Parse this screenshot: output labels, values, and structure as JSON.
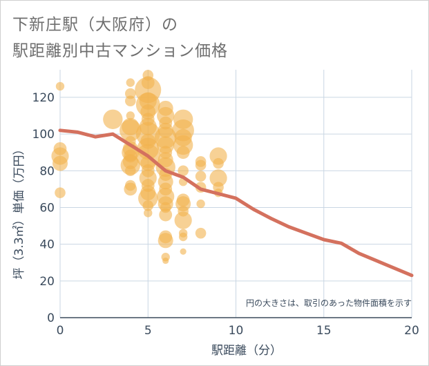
{
  "chart_data": {
    "type": "scatter",
    "title_line1": "下新庄駅（大阪府）の",
    "title_line2": "駅距離別中古マンション価格",
    "xlabel": "駅距離（分）",
    "ylabel": "坪（3.3㎡）単価（万円）",
    "note": "円の大きさは、取引のあった物件面積を示す",
    "xlim": [
      0,
      20
    ],
    "ylim": [
      0,
      135
    ],
    "x_ticks": [
      0,
      5,
      10,
      15,
      20
    ],
    "y_ticks": [
      0,
      20,
      40,
      60,
      80,
      100,
      120
    ],
    "grid": true,
    "colors": {
      "bubble": "#f2b24e",
      "trend": "#d4715e",
      "grid": "#c9d6e3",
      "axis": "#3a4a5c"
    },
    "bubbles": [
      {
        "x": 0,
        "y": 126,
        "s": 2
      },
      {
        "x": 0,
        "y": 92,
        "s": 4
      },
      {
        "x": 0,
        "y": 88,
        "s": 6
      },
      {
        "x": 0,
        "y": 84,
        "s": 5
      },
      {
        "x": 0,
        "y": 68,
        "s": 3
      },
      {
        "x": 3,
        "y": 108,
        "s": 7
      },
      {
        "x": 4,
        "y": 128,
        "s": 2
      },
      {
        "x": 4,
        "y": 122,
        "s": 3
      },
      {
        "x": 4,
        "y": 118,
        "s": 3
      },
      {
        "x": 4,
        "y": 110,
        "s": 2
      },
      {
        "x": 4,
        "y": 104,
        "s": 6
      },
      {
        "x": 4,
        "y": 102,
        "s": 8
      },
      {
        "x": 4,
        "y": 96,
        "s": 3
      },
      {
        "x": 4,
        "y": 92,
        "s": 5
      },
      {
        "x": 4,
        "y": 90,
        "s": 6
      },
      {
        "x": 4,
        "y": 88,
        "s": 4
      },
      {
        "x": 4,
        "y": 85,
        "s": 5
      },
      {
        "x": 4,
        "y": 83,
        "s": 7
      },
      {
        "x": 4,
        "y": 80,
        "s": 3
      },
      {
        "x": 4,
        "y": 72,
        "s": 3
      },
      {
        "x": 4,
        "y": 70,
        "s": 4
      },
      {
        "x": 5,
        "y": 132,
        "s": 3
      },
      {
        "x": 5,
        "y": 128,
        "s": 4
      },
      {
        "x": 5,
        "y": 124,
        "s": 10
      },
      {
        "x": 5,
        "y": 118,
        "s": 6
      },
      {
        "x": 5,
        "y": 116,
        "s": 9
      },
      {
        "x": 5,
        "y": 112,
        "s": 5
      },
      {
        "x": 5,
        "y": 108,
        "s": 4
      },
      {
        "x": 5,
        "y": 104,
        "s": 6
      },
      {
        "x": 5,
        "y": 100,
        "s": 9
      },
      {
        "x": 5,
        "y": 96,
        "s": 5
      },
      {
        "x": 5,
        "y": 92,
        "s": 8
      },
      {
        "x": 5,
        "y": 88,
        "s": 9
      },
      {
        "x": 5,
        "y": 84,
        "s": 5
      },
      {
        "x": 5,
        "y": 80,
        "s": 4
      },
      {
        "x": 5,
        "y": 76,
        "s": 6
      },
      {
        "x": 5,
        "y": 72,
        "s": 4
      },
      {
        "x": 5,
        "y": 68,
        "s": 5
      },
      {
        "x": 5,
        "y": 65,
        "s": 7
      },
      {
        "x": 5,
        "y": 61,
        "s": 3
      },
      {
        "x": 5,
        "y": 57,
        "s": 2
      },
      {
        "x": 6,
        "y": 114,
        "s": 5
      },
      {
        "x": 6,
        "y": 110,
        "s": 6
      },
      {
        "x": 6,
        "y": 106,
        "s": 4
      },
      {
        "x": 6,
        "y": 102,
        "s": 5
      },
      {
        "x": 6,
        "y": 98,
        "s": 8
      },
      {
        "x": 6,
        "y": 94,
        "s": 6
      },
      {
        "x": 6,
        "y": 90,
        "s": 4
      },
      {
        "x": 6,
        "y": 86,
        "s": 5
      },
      {
        "x": 6,
        "y": 82,
        "s": 7
      },
      {
        "x": 6,
        "y": 78,
        "s": 4
      },
      {
        "x": 6,
        "y": 74,
        "s": 5
      },
      {
        "x": 6,
        "y": 70,
        "s": 4
      },
      {
        "x": 6,
        "y": 66,
        "s": 6
      },
      {
        "x": 6,
        "y": 62,
        "s": 5
      },
      {
        "x": 6,
        "y": 60,
        "s": 3
      },
      {
        "x": 6,
        "y": 56,
        "s": 4
      },
      {
        "x": 6,
        "y": 44,
        "s": 4
      },
      {
        "x": 6,
        "y": 42,
        "s": 5
      },
      {
        "x": 6,
        "y": 33,
        "s": 2
      },
      {
        "x": 6,
        "y": 31,
        "s": 1
      },
      {
        "x": 7,
        "y": 108,
        "s": 7
      },
      {
        "x": 7,
        "y": 102,
        "s": 8
      },
      {
        "x": 7,
        "y": 98,
        "s": 6
      },
      {
        "x": 7,
        "y": 94,
        "s": 7
      },
      {
        "x": 7,
        "y": 90,
        "s": 4
      },
      {
        "x": 7,
        "y": 80,
        "s": 3
      },
      {
        "x": 7,
        "y": 74,
        "s": 2
      },
      {
        "x": 7,
        "y": 64,
        "s": 4
      },
      {
        "x": 7,
        "y": 62,
        "s": 5
      },
      {
        "x": 7,
        "y": 58,
        "s": 3
      },
      {
        "x": 7,
        "y": 53,
        "s": 6
      },
      {
        "x": 7,
        "y": 46,
        "s": 2
      },
      {
        "x": 7,
        "y": 44,
        "s": 2
      },
      {
        "x": 7,
        "y": 36,
        "s": 1
      },
      {
        "x": 8,
        "y": 85,
        "s": 3
      },
      {
        "x": 8,
        "y": 83,
        "s": 3
      },
      {
        "x": 8,
        "y": 77,
        "s": 3
      },
      {
        "x": 8,
        "y": 71,
        "s": 3
      },
      {
        "x": 8,
        "y": 62,
        "s": 2
      },
      {
        "x": 8,
        "y": 46,
        "s": 3
      },
      {
        "x": 9,
        "y": 88,
        "s": 6
      },
      {
        "x": 9,
        "y": 84,
        "s": 3
      },
      {
        "x": 9,
        "y": 76,
        "s": 6
      },
      {
        "x": 9,
        "y": 71,
        "s": 3
      },
      {
        "x": 9,
        "y": 68,
        "s": 2
      }
    ],
    "trend": {
      "x": [
        0,
        1,
        2,
        3,
        4,
        5,
        6,
        7,
        8,
        9,
        10,
        11,
        12,
        13,
        14,
        15,
        16,
        17,
        18,
        19,
        20
      ],
      "y": [
        102,
        101,
        98.5,
        100,
        94,
        88,
        80,
        76.5,
        70,
        67.5,
        65,
        59,
        54,
        49.5,
        46,
        42.5,
        40.5,
        35,
        31,
        27,
        23
      ]
    }
  }
}
